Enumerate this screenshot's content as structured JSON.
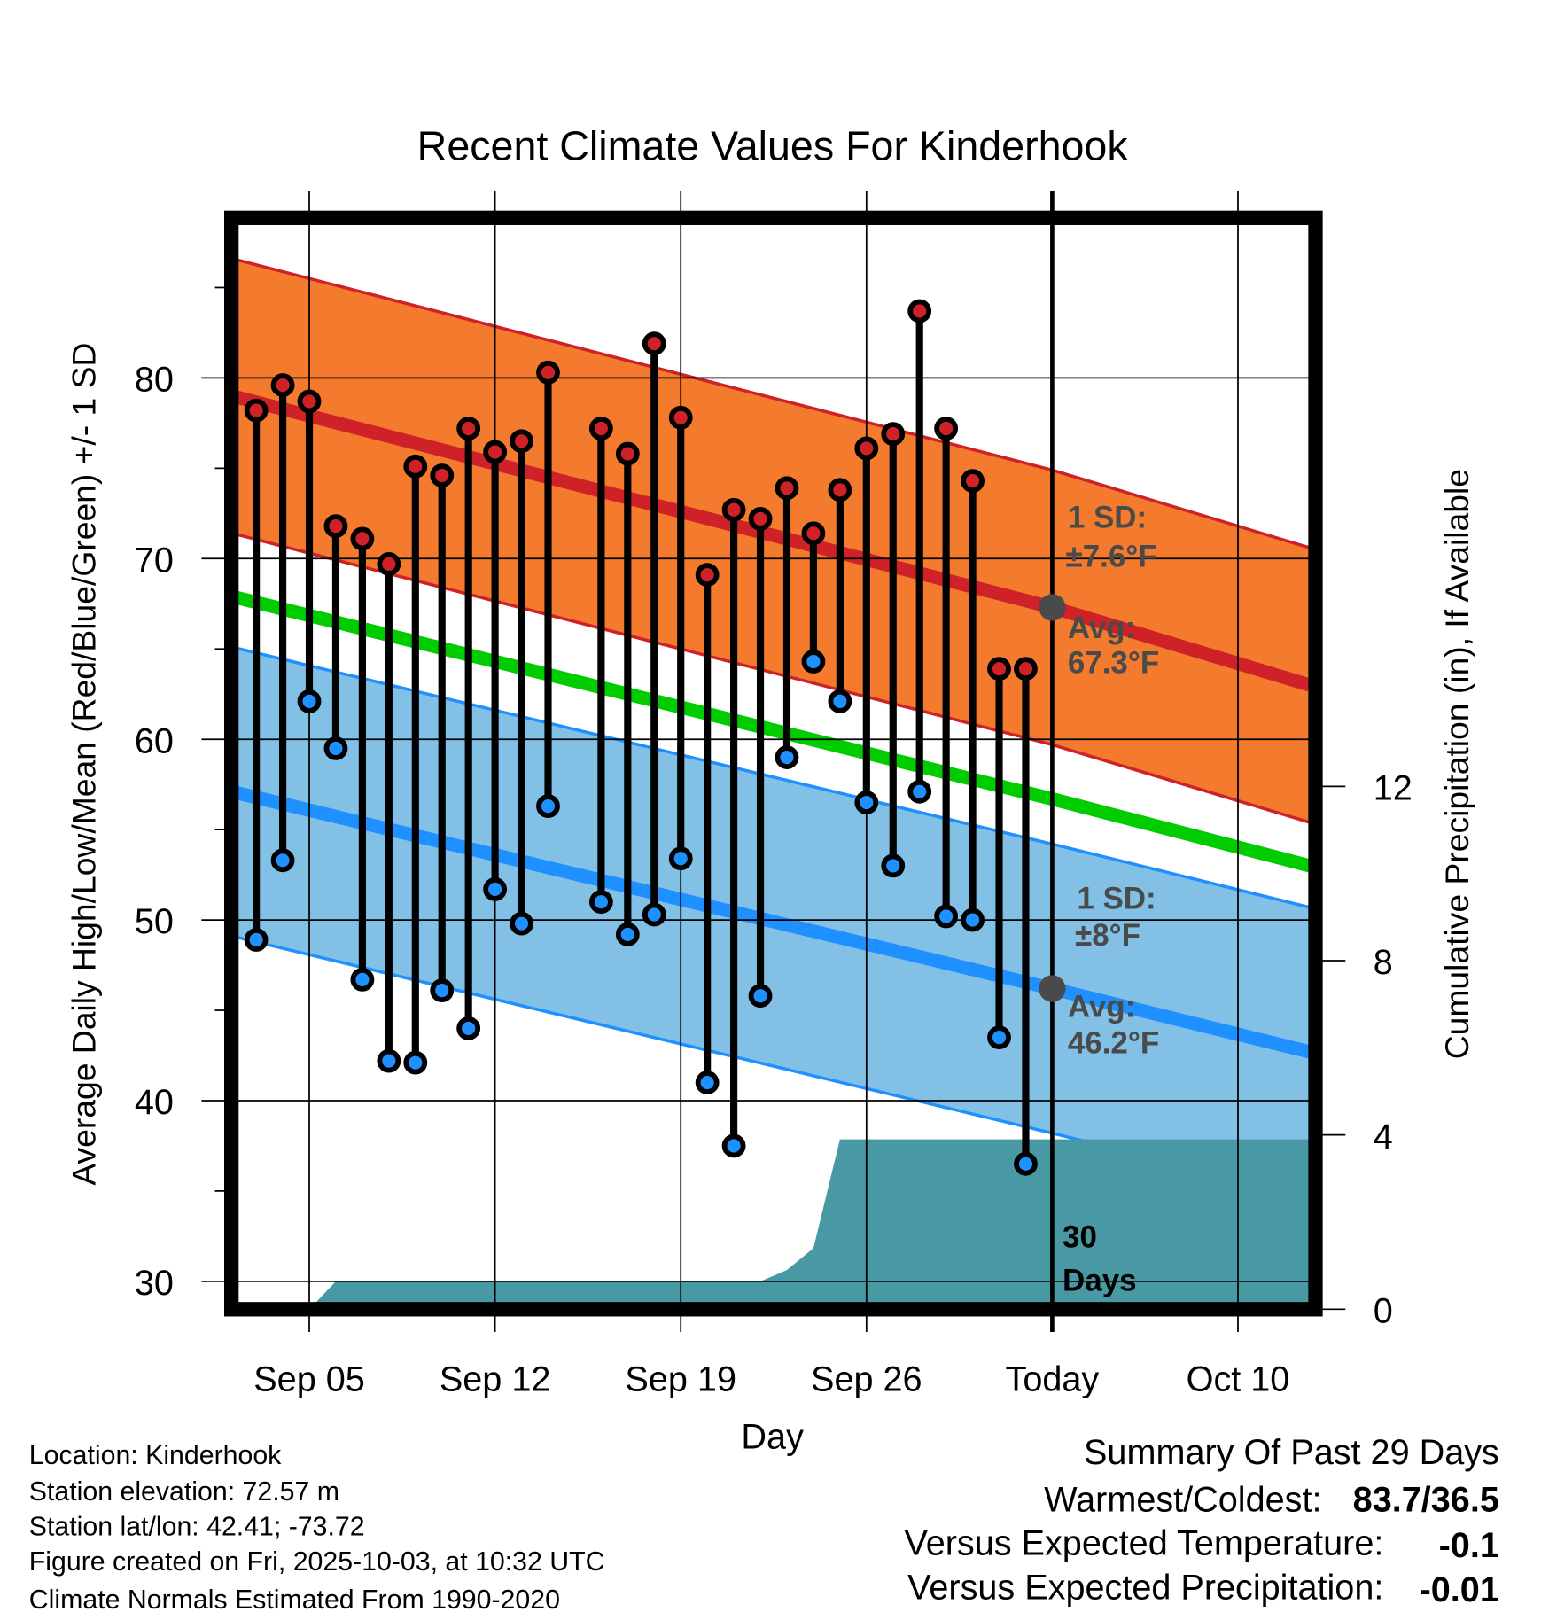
{
  "chart_data": {
    "type": "line",
    "title": "Recent Climate Values For Kinderhook",
    "xlabel": "Day",
    "ylabel": "Average Daily High/Low/Mean (Red/Blue/Green) +/- 1 SD",
    "ylabel_right": "Cumulative Precipitation (in), If Available",
    "ylim": [
      29,
      88
    ],
    "ylim_right": [
      0,
      21
    ],
    "y_ticks": [
      30,
      40,
      50,
      60,
      70,
      80
    ],
    "y_ticks_right": [
      0,
      4,
      8,
      12
    ],
    "x_origin_date": "Sep 03",
    "x_ticks": [
      {
        "day": 2,
        "label": "Sep 05"
      },
      {
        "day": 9,
        "label": "Sep 12"
      },
      {
        "day": 16,
        "label": "Sep 19"
      },
      {
        "day": 23,
        "label": "Sep 26"
      },
      {
        "day": 30,
        "label": "Today"
      },
      {
        "day": 37,
        "label": "Oct 10"
      }
    ],
    "xlim_days": [
      -0.9,
      39.7
    ],
    "grid": true,
    "observations": [
      {
        "date": "Sep 03",
        "day": 0,
        "high": 78.2,
        "low": 48.9
      },
      {
        "date": "Sep 04",
        "day": 1,
        "high": 79.6,
        "low": 53.3
      },
      {
        "date": "Sep 05",
        "day": 2,
        "high": 78.7,
        "low": 62.1
      },
      {
        "date": "Sep 06",
        "day": 3,
        "high": 71.8,
        "low": 59.5
      },
      {
        "date": "Sep 07",
        "day": 4,
        "high": 71.1,
        "low": 46.7
      },
      {
        "date": "Sep 08",
        "day": 5,
        "high": 69.7,
        "low": 42.2
      },
      {
        "date": "Sep 09",
        "day": 6,
        "high": 75.1,
        "low": 42.1
      },
      {
        "date": "Sep 10",
        "day": 7,
        "high": 74.6,
        "low": 46.1
      },
      {
        "date": "Sep 11",
        "day": 8,
        "high": 77.2,
        "low": 44.0
      },
      {
        "date": "Sep 12",
        "day": 9,
        "high": 75.9,
        "low": 51.7
      },
      {
        "date": "Sep 13",
        "day": 10,
        "high": 76.5,
        "low": 49.8
      },
      {
        "date": "Sep 14",
        "day": 11,
        "high": 80.3,
        "low": 56.3
      },
      {
        "date": "Sep 16",
        "day": 13,
        "high": 77.2,
        "low": 51.0
      },
      {
        "date": "Sep 17",
        "day": 14,
        "high": 75.8,
        "low": 49.2
      },
      {
        "date": "Sep 18",
        "day": 15,
        "high": 81.9,
        "low": 50.3
      },
      {
        "date": "Sep 19",
        "day": 16,
        "high": 77.8,
        "low": 53.4
      },
      {
        "date": "Sep 20",
        "day": 17,
        "high": 69.1,
        "low": 41.0
      },
      {
        "date": "Sep 21",
        "day": 18,
        "high": 72.7,
        "low": 37.5
      },
      {
        "date": "Sep 22",
        "day": 19,
        "high": 72.2,
        "low": 45.8
      },
      {
        "date": "Sep 23",
        "day": 20,
        "high": 73.9,
        "low": 59.0
      },
      {
        "date": "Sep 24",
        "day": 21,
        "high": 71.4,
        "low": 64.3
      },
      {
        "date": "Sep 25",
        "day": 22,
        "high": 73.8,
        "low": 62.1
      },
      {
        "date": "Sep 26",
        "day": 23,
        "high": 76.1,
        "low": 56.5
      },
      {
        "date": "Sep 27",
        "day": 24,
        "high": 76.9,
        "low": 53.0
      },
      {
        "date": "Sep 28",
        "day": 25,
        "high": 83.7,
        "low": 57.1
      },
      {
        "date": "Sep 29",
        "day": 26,
        "high": 77.2,
        "low": 50.2
      },
      {
        "date": "Sep 30",
        "day": 27,
        "high": 74.3,
        "low": 50.0
      },
      {
        "date": "Oct 01",
        "day": 28,
        "high": 63.9,
        "low": 43.5
      },
      {
        "date": "Oct 02",
        "day": 29,
        "high": 63.9,
        "low": 36.5
      }
    ],
    "normals": {
      "days": [
        -0.9,
        30,
        39.7
      ],
      "high_avg": [
        79.0,
        67.3,
        63.0
      ],
      "high_sd": 7.6,
      "mean_avg": [
        67.9,
        56.7,
        53.0
      ],
      "low_avg": [
        57.1,
        46.2,
        42.7
      ],
      "low_sd": 8
    },
    "precipitation": {
      "days": [
        2,
        3,
        19,
        20,
        21,
        22,
        39.7
      ],
      "cumulative_in": [
        0,
        0.64,
        0.64,
        0.9,
        1.4,
        3.9,
        3.9
      ]
    },
    "annotations": {
      "high_sd_line1": "1 SD:",
      "high_sd_line2": "±7.6°F",
      "high_avg_line1": "Avg:",
      "high_avg_line2": "67.3°F",
      "low_sd_line1": "1 SD:",
      "low_sd_line2": "±8°F",
      "low_avg_line1": "Avg:",
      "low_avg_line2": "46.2°F",
      "window_line1": "30",
      "window_line2": "Days"
    },
    "colors": {
      "high_band": "#f47a2e",
      "high_line": "#cf2228",
      "mean_line": "#00cc00",
      "low_band": "#82c0e6",
      "low_line": "#1e90ff",
      "precip": "#4899a3",
      "high_dot": "#cf2228",
      "low_dot": "#1e90ff"
    }
  },
  "info": {
    "location": "Location: Kinderhook",
    "elevation": "Station elevation: 72.57 m",
    "latlon": "Station lat/lon: 42.41; -73.72",
    "created": "Figure created on Fri, 2025-10-03, at 10:32 UTC",
    "normals": "Climate Normals Estimated From 1990-2020"
  },
  "summary": {
    "title": "Summary Of Past 29 Days",
    "warmest_label": "Warmest/Coldest:",
    "warmest_value": "83.7/36.5",
    "temp_label": "Versus Expected Temperature:",
    "temp_value": "-0.1",
    "temp_color": "#1e90ff",
    "precip_label": "Versus Expected Precipitation:",
    "precip_value": "-0.01",
    "precip_color": "#a0522d"
  }
}
